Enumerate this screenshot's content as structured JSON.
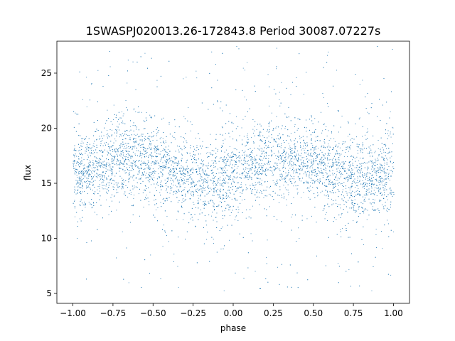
{
  "chart_data": {
    "type": "scatter",
    "title": "1SWASPJ020013.26-172843.8 Period 30087.07227s",
    "xlabel": "phase",
    "ylabel": "flux",
    "xlim": [
      -1.1,
      1.1
    ],
    "ylim": [
      4.1,
      27.9
    ],
    "xticks": [
      -1.0,
      -0.75,
      -0.5,
      -0.25,
      0.0,
      0.25,
      0.5,
      0.75,
      1.0
    ],
    "xtick_labels": [
      "−1.00",
      "−0.75",
      "−0.50",
      "−0.25",
      "0.00",
      "0.25",
      "0.50",
      "0.75",
      "1.00"
    ],
    "yticks": [
      5,
      10,
      15,
      20,
      25
    ],
    "ytick_labels": [
      "5",
      "10",
      "15",
      "20",
      "25"
    ],
    "grid": false,
    "legend": "none",
    "marker_color": "#1f77b4",
    "series": [
      {
        "phase_range": [
          -1.0,
          1.0
        ],
        "flux_range": [
          5.2,
          27.5
        ],
        "mean_curve": {
          "x": [
            -1.0,
            -0.9,
            -0.8,
            -0.7,
            -0.6,
            -0.5,
            -0.4,
            -0.3,
            -0.2,
            -0.1,
            0.0,
            0.1,
            0.2,
            0.3,
            0.4,
            0.5,
            0.6,
            0.7,
            0.8,
            0.9,
            1.0
          ],
          "y": [
            15.6,
            16.3,
            17.0,
            17.4,
            17.3,
            16.8,
            16.2,
            15.6,
            15.3,
            15.4,
            15.8,
            16.4,
            17.0,
            17.4,
            17.3,
            16.8,
            16.2,
            15.6,
            15.3,
            15.4,
            15.6
          ]
        },
        "core_spread": 1.6,
        "outlier_range": [
          5.2,
          27.5
        ]
      }
    ]
  }
}
